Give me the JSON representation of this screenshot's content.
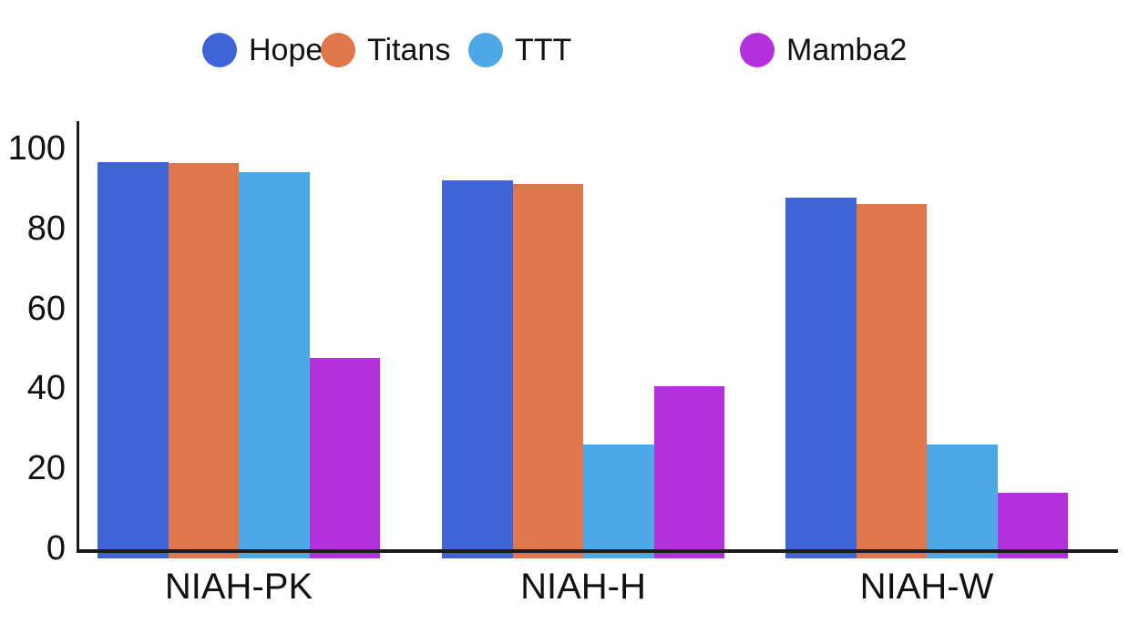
{
  "chart_data": {
    "type": "bar",
    "title": "",
    "categories": [
      "NIAH-PK",
      "NIAH-H",
      "NIAH-W"
    ],
    "series": [
      {
        "name": "Hope",
        "color": "#3E64D8",
        "values": [
          96.6,
          92.0,
          87.6
        ]
      },
      {
        "name": "Titans",
        "color": "#E0774A",
        "values": [
          96.3,
          91.2,
          86.2
        ]
      },
      {
        "name": "TTT",
        "color": "#4FA8E6",
        "values": [
          94.0,
          26.0,
          26.0
        ]
      },
      {
        "name": "Mamba2",
        "color": "#B231DC",
        "values": [
          47.6,
          40.5,
          13.8
        ]
      }
    ],
    "xlabel": "",
    "ylabel": "",
    "ylim": [
      0,
      100
    ],
    "yticks": [
      0,
      20,
      40,
      60,
      80,
      100
    ],
    "grid": false,
    "legend_position": "top",
    "axis_color": "#1b1b1b",
    "text_color": "#111111",
    "background": "#ffffff"
  }
}
